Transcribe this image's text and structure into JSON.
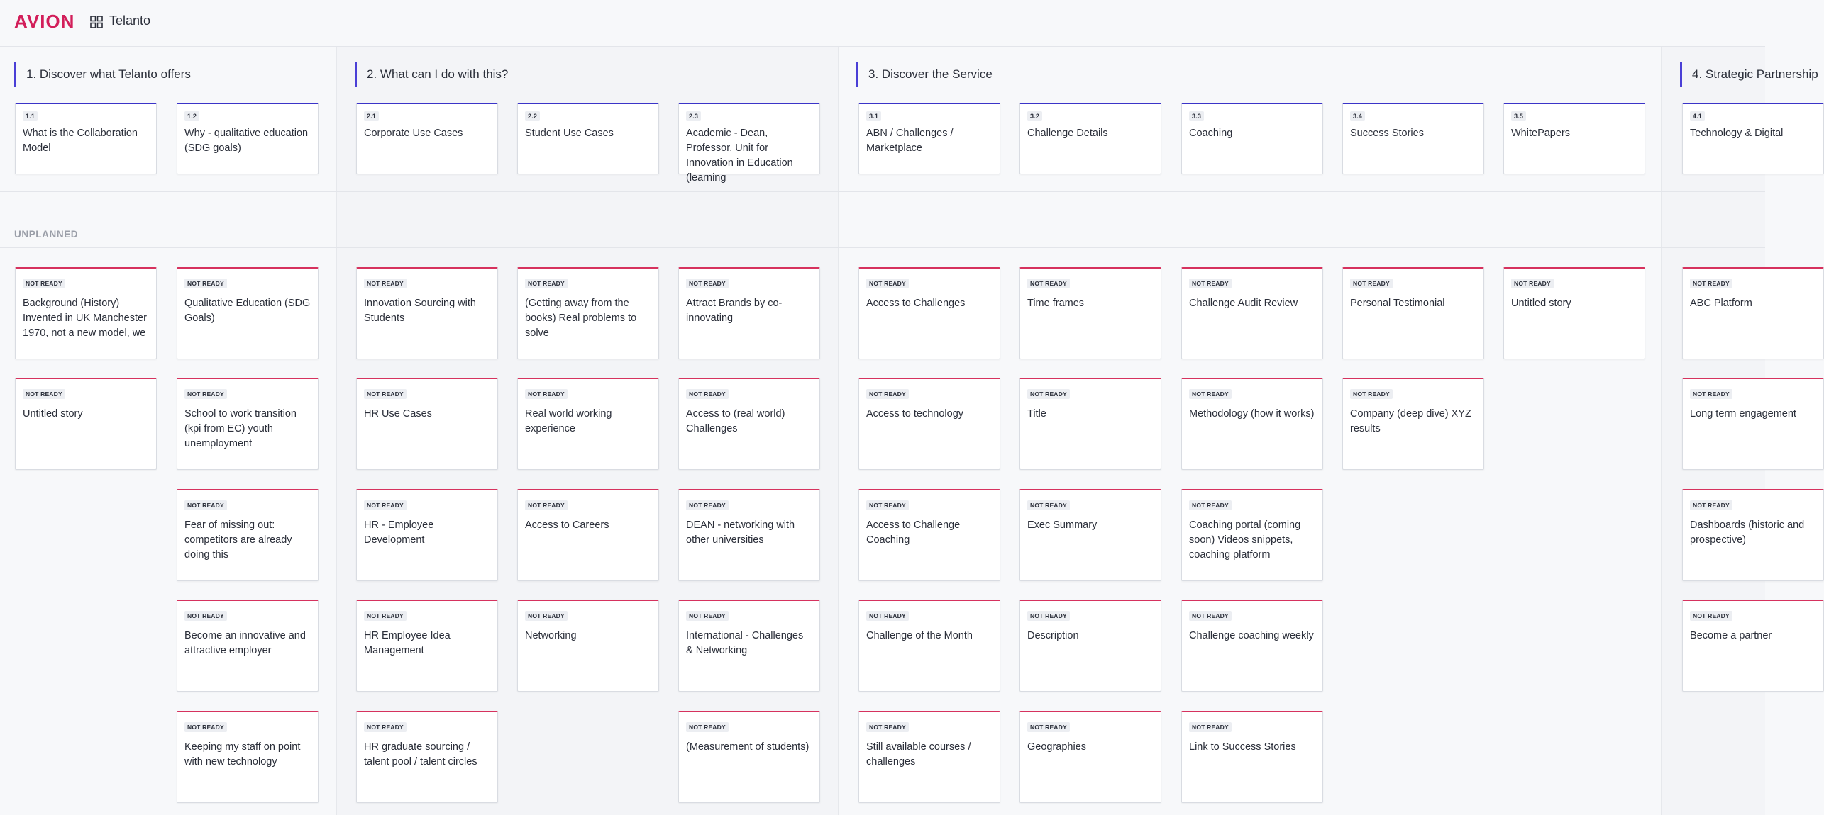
{
  "brand": {
    "logo_text": "AVION",
    "app_name": "Telanto"
  },
  "release": {
    "label": "UNPLANNED"
  },
  "status_label": "NOT READY",
  "activities": [
    {
      "title": "1. Discover what Telanto offers"
    },
    {
      "title": "2. What can I do with this?"
    },
    {
      "title": "3. Discover the Service"
    },
    {
      "title": "4. Strategic Partnership"
    }
  ],
  "tasks": [
    {
      "id": "1.1",
      "title": "What is the Collaboration Model"
    },
    {
      "id": "1.2",
      "title": "Why - qualitative education (SDG goals)"
    },
    {
      "id": "2.1",
      "title": "Corporate Use Cases"
    },
    {
      "id": "2.2",
      "title": "Student Use Cases"
    },
    {
      "id": "2.3",
      "title": "Academic - Dean, Professor, Unit for Innovation in Education (learning"
    },
    {
      "id": "3.1",
      "title": "ABN / Challenges / Marketplace"
    },
    {
      "id": "3.2",
      "title": "Challenge Details"
    },
    {
      "id": "3.3",
      "title": "Coaching"
    },
    {
      "id": "3.4",
      "title": "Success Stories"
    },
    {
      "id": "3.5",
      "title": "WhitePapers"
    },
    {
      "id": "4.1",
      "title": "Technology & Digital"
    }
  ],
  "story_columns": [
    {
      "stories": [
        "Background (History) Invented in UK Manchester 1970, not a new model, we",
        "Untitled story"
      ]
    },
    {
      "stories": [
        "Qualitative Education (SDG Goals)",
        "School to work transition (kpi from EC) youth unemployment",
        "Fear of missing out: competitors are already doing this",
        "Become an innovative and attractive employer",
        "Keeping my staff on point with new technology"
      ]
    },
    {
      "stories": [
        "Innovation Sourcing with Students",
        "HR Use Cases",
        "HR - Employee Development",
        "HR Employee Idea Management",
        "HR graduate sourcing / talent pool / talent circles"
      ]
    },
    {
      "stories": [
        "(Getting away from the books) Real problems to solve",
        "Real world working experience",
        "Access to Careers",
        "Networking"
      ]
    },
    {
      "stories": [
        "Attract Brands by co-innovating",
        "Access to (real world) Challenges",
        "DEAN - networking with other universities",
        "International - Challenges & Networking",
        "(Measurement of students)"
      ]
    },
    {
      "stories": [
        "Access to Challenges",
        "Access to technology",
        "Access to Challenge Coaching",
        "Challenge of the Month",
        "Still available courses / challenges"
      ]
    },
    {
      "stories": [
        "Time frames",
        "Title",
        "Exec Summary",
        "Description",
        "Geographies"
      ]
    },
    {
      "stories": [
        "Challenge Audit Review",
        "Methodology (how it works)",
        "Coaching portal (coming soon) Videos snippets, coaching platform",
        "Challenge coaching weekly",
        "Link to Success Stories"
      ]
    },
    {
      "stories": [
        "Personal Testimonial",
        "Company (deep dive) XYZ results"
      ]
    },
    {
      "stories": [
        "Untitled story"
      ]
    },
    {
      "stories": [
        "ABC Platform",
        "Long term engagement",
        "Dashboards (historic and prospective)",
        "Become a partner"
      ]
    }
  ],
  "colors": {
    "brand": "#d21f5a",
    "task_accent": "#3b34c8",
    "story_accent": "#d6325e",
    "activity_accent": "#4a3fd6"
  }
}
